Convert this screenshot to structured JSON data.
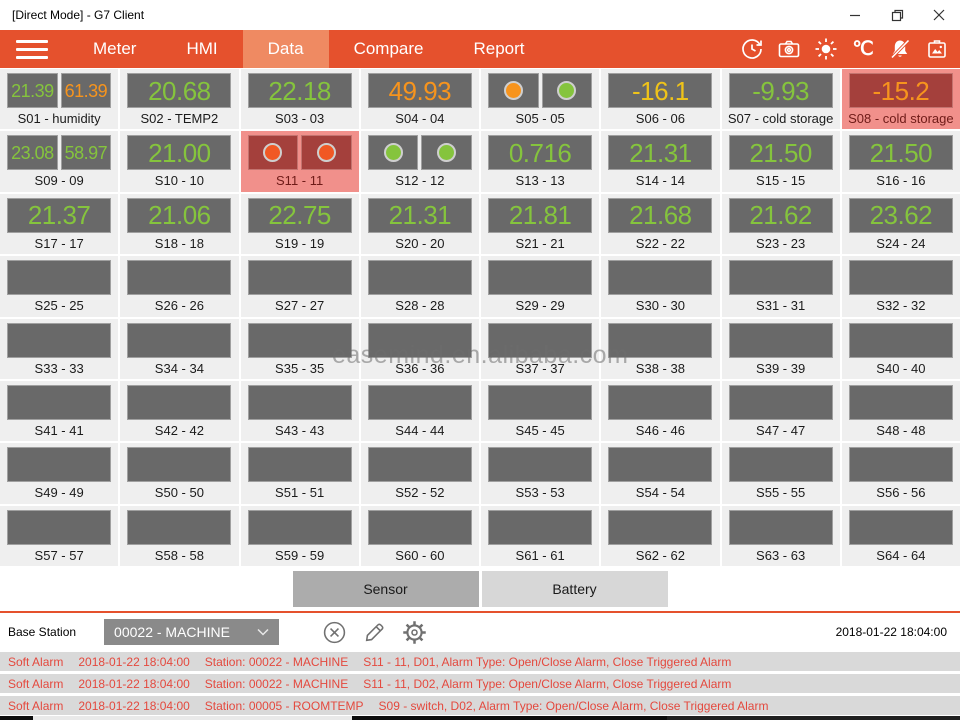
{
  "window": {
    "title": "[Direct Mode] - G7 Client",
    "controls": [
      "minimize",
      "restore",
      "close"
    ]
  },
  "nav": {
    "items": [
      {
        "label": "Meter",
        "active": false
      },
      {
        "label": "HMI",
        "active": false
      },
      {
        "label": "Data",
        "active": true
      },
      {
        "label": "Compare",
        "active": false
      },
      {
        "label": "Report",
        "active": false
      }
    ],
    "temperature_unit": "℃",
    "icons": [
      "refresh-history-icon",
      "camera-icon",
      "brightness-icon",
      "temperature-unit-label",
      "alarm-mute-icon",
      "gallery-icon"
    ]
  },
  "colors": {
    "green": "#85C43D",
    "orange": "#F7941D",
    "yellow": "#EFC319",
    "red": "#F15824",
    "accent": "#E5512D",
    "alarm_cell": "#F1908B",
    "alarm_box": "#A4403C"
  },
  "grid": {
    "tiles": [
      {
        "id": "S01",
        "label": "S01 - humidity",
        "type": "dual-value",
        "values": [
          {
            "text": "21.39",
            "color": "green"
          },
          {
            "text": "61.39",
            "color": "orange"
          }
        ]
      },
      {
        "id": "S02",
        "label": "S02 - TEMP2",
        "type": "value",
        "values": [
          {
            "text": "20.68",
            "color": "green"
          }
        ]
      },
      {
        "id": "S03",
        "label": "S03 - 03",
        "type": "value",
        "values": [
          {
            "text": "22.18",
            "color": "green"
          }
        ]
      },
      {
        "id": "S04",
        "label": "S04 - 04",
        "type": "value",
        "values": [
          {
            "text": "49.93",
            "color": "orange"
          }
        ]
      },
      {
        "id": "S05",
        "label": "S05 - 05",
        "type": "dual-indicator",
        "indicators": [
          "orange",
          "green"
        ]
      },
      {
        "id": "S06",
        "label": "S06 - 06",
        "type": "value",
        "values": [
          {
            "text": "-16.1",
            "color": "yellow"
          }
        ]
      },
      {
        "id": "S07",
        "label": "S07 - cold storage",
        "type": "value",
        "values": [
          {
            "text": "-9.93",
            "color": "green"
          }
        ]
      },
      {
        "id": "S08",
        "label": "S08 - cold storage",
        "type": "value",
        "alarm": true,
        "values": [
          {
            "text": "-15.2",
            "color": "orange"
          }
        ]
      },
      {
        "id": "S09",
        "label": "S09 - 09",
        "type": "dual-value",
        "values": [
          {
            "text": "23.08",
            "color": "green"
          },
          {
            "text": "58.97",
            "color": "green"
          }
        ]
      },
      {
        "id": "S10",
        "label": "S10 - 10",
        "type": "value",
        "values": [
          {
            "text": "21.00",
            "color": "green"
          }
        ]
      },
      {
        "id": "S11",
        "label": "S11 - 11",
        "type": "dual-indicator",
        "alarm": true,
        "indicators": [
          "red",
          "red"
        ]
      },
      {
        "id": "S12",
        "label": "S12 - 12",
        "type": "dual-indicator",
        "indicators": [
          "green",
          "green"
        ]
      },
      {
        "id": "S13",
        "label": "S13 - 13",
        "type": "value",
        "values": [
          {
            "text": "0.716",
            "color": "green"
          }
        ]
      },
      {
        "id": "S14",
        "label": "S14 - 14",
        "type": "value",
        "values": [
          {
            "text": "21.31",
            "color": "green"
          }
        ]
      },
      {
        "id": "S15",
        "label": "S15 - 15",
        "type": "value",
        "values": [
          {
            "text": "21.50",
            "color": "green"
          }
        ]
      },
      {
        "id": "S16",
        "label": "S16 - 16",
        "type": "value",
        "values": [
          {
            "text": "21.50",
            "color": "green"
          }
        ]
      },
      {
        "id": "S17",
        "label": "S17 - 17",
        "type": "value",
        "values": [
          {
            "text": "21.37",
            "color": "green"
          }
        ]
      },
      {
        "id": "S18",
        "label": "S18 - 18",
        "type": "value",
        "values": [
          {
            "text": "21.06",
            "color": "green"
          }
        ]
      },
      {
        "id": "S19",
        "label": "S19 - 19",
        "type": "value",
        "values": [
          {
            "text": "22.75",
            "color": "green"
          }
        ]
      },
      {
        "id": "S20",
        "label": "S20 - 20",
        "type": "value",
        "values": [
          {
            "text": "21.31",
            "color": "green"
          }
        ]
      },
      {
        "id": "S21",
        "label": "S21 - 21",
        "type": "value",
        "values": [
          {
            "text": "21.81",
            "color": "green"
          }
        ]
      },
      {
        "id": "S22",
        "label": "S22 - 22",
        "type": "value",
        "values": [
          {
            "text": "21.68",
            "color": "green"
          }
        ]
      },
      {
        "id": "S23",
        "label": "S23 - 23",
        "type": "value",
        "values": [
          {
            "text": "21.62",
            "color": "green"
          }
        ]
      },
      {
        "id": "S24",
        "label": "S24 - 24",
        "type": "value",
        "values": [
          {
            "text": "23.62",
            "color": "green"
          }
        ]
      },
      {
        "id": "S25",
        "label": "S25 - 25",
        "type": "empty"
      },
      {
        "id": "S26",
        "label": "S26 - 26",
        "type": "empty"
      },
      {
        "id": "S27",
        "label": "S27 - 27",
        "type": "empty"
      },
      {
        "id": "S28",
        "label": "S28 - 28",
        "type": "empty"
      },
      {
        "id": "S29",
        "label": "S29 - 29",
        "type": "empty"
      },
      {
        "id": "S30",
        "label": "S30 - 30",
        "type": "empty"
      },
      {
        "id": "S31",
        "label": "S31 - 31",
        "type": "empty"
      },
      {
        "id": "S32",
        "label": "S32 - 32",
        "type": "empty"
      },
      {
        "id": "S33",
        "label": "S33 - 33",
        "type": "empty"
      },
      {
        "id": "S34",
        "label": "S34 - 34",
        "type": "empty"
      },
      {
        "id": "S35",
        "label": "S35 - 35",
        "type": "empty"
      },
      {
        "id": "S36",
        "label": "S36 - 36",
        "type": "empty"
      },
      {
        "id": "S37",
        "label": "S37 - 37",
        "type": "empty"
      },
      {
        "id": "S38",
        "label": "S38 - 38",
        "type": "empty"
      },
      {
        "id": "S39",
        "label": "S39 - 39",
        "type": "empty"
      },
      {
        "id": "S40",
        "label": "S40 - 40",
        "type": "empty"
      },
      {
        "id": "S41",
        "label": "S41 - 41",
        "type": "empty"
      },
      {
        "id": "S42",
        "label": "S42 - 42",
        "type": "empty"
      },
      {
        "id": "S43",
        "label": "S43 - 43",
        "type": "empty"
      },
      {
        "id": "S44",
        "label": "S44 - 44",
        "type": "empty"
      },
      {
        "id": "S45",
        "label": "S45 - 45",
        "type": "empty"
      },
      {
        "id": "S46",
        "label": "S46 - 46",
        "type": "empty"
      },
      {
        "id": "S47",
        "label": "S47 - 47",
        "type": "empty"
      },
      {
        "id": "S48",
        "label": "S48 - 48",
        "type": "empty"
      },
      {
        "id": "S49",
        "label": "S49 - 49",
        "type": "empty"
      },
      {
        "id": "S50",
        "label": "S50 - 50",
        "type": "empty"
      },
      {
        "id": "S51",
        "label": "S51 - 51",
        "type": "empty"
      },
      {
        "id": "S52",
        "label": "S52 - 52",
        "type": "empty"
      },
      {
        "id": "S53",
        "label": "S53 - 53",
        "type": "empty"
      },
      {
        "id": "S54",
        "label": "S54 - 54",
        "type": "empty"
      },
      {
        "id": "S55",
        "label": "S55 - 55",
        "type": "empty"
      },
      {
        "id": "S56",
        "label": "S56 - 56",
        "type": "empty"
      },
      {
        "id": "S57",
        "label": "S57 - 57",
        "type": "empty"
      },
      {
        "id": "S58",
        "label": "S58 - 58",
        "type": "empty"
      },
      {
        "id": "S59",
        "label": "S59 - 59",
        "type": "empty"
      },
      {
        "id": "S60",
        "label": "S60 - 60",
        "type": "empty"
      },
      {
        "id": "S61",
        "label": "S61 - 61",
        "type": "empty"
      },
      {
        "id": "S62",
        "label": "S62 - 62",
        "type": "empty"
      },
      {
        "id": "S63",
        "label": "S63 - 63",
        "type": "empty"
      },
      {
        "id": "S64",
        "label": "S64 - 64",
        "type": "empty"
      }
    ]
  },
  "watermark": "easemind.en.alibaba.com",
  "tabs": {
    "sensor_label": "Sensor",
    "battery_label": "Battery"
  },
  "footer": {
    "base_station_label": "Base Station",
    "station_value": "00022 - MACHINE",
    "tool_icons": [
      "cancel-icon",
      "edit-icon",
      "settings-icon"
    ],
    "timestamp": "2018-01-22 18:04:00"
  },
  "alarms": [
    {
      "type": "Soft Alarm",
      "time": "2018-01-22 18:04:00",
      "station": "Station: 00022 - MACHINE",
      "detail": "S11 - 11, D01, Alarm Type: Open/Close Alarm, Close Triggered Alarm"
    },
    {
      "type": "Soft Alarm",
      "time": "2018-01-22 18:04:00",
      "station": "Station: 00022 - MACHINE",
      "detail": "S11 - 11, D02, Alarm Type: Open/Close Alarm, Close Triggered Alarm"
    },
    {
      "type": "Soft Alarm",
      "time": "2018-01-22 18:04:00",
      "station": "Station: 00005 - ROOMTEMP",
      "detail": "S09 - switch, D02, Alarm Type: Open/Close Alarm, Close Triggered Alarm"
    }
  ]
}
